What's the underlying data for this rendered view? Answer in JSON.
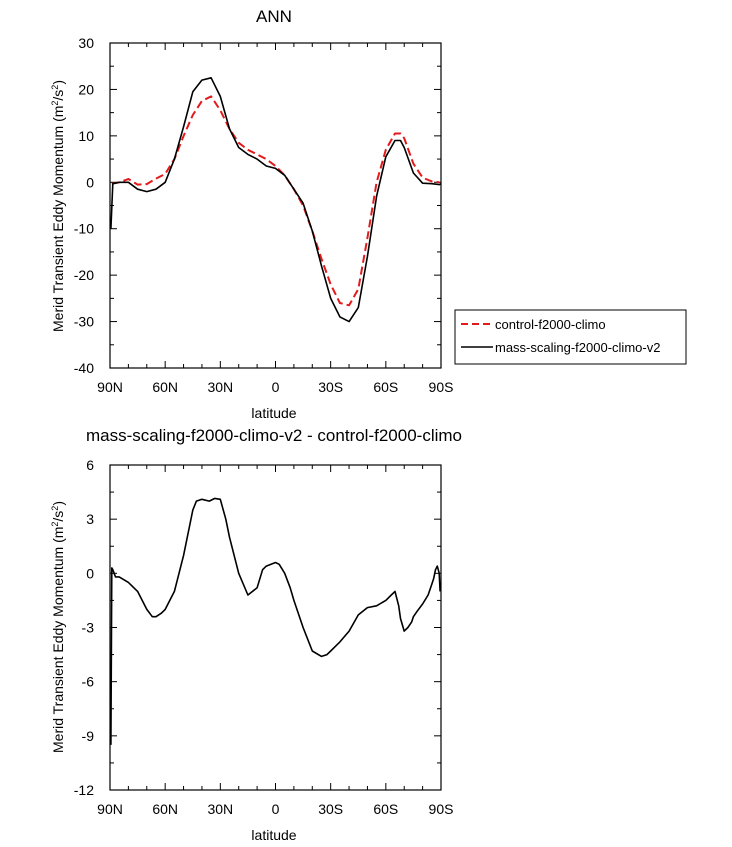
{
  "chart_data": [
    {
      "type": "line",
      "title": "ANN",
      "xlabel": "latitude",
      "ylabel": "Merid Transient Eddy Momentum",
      "ylabel_unit": "m2/s2",
      "xlim": [
        90,
        -90
      ],
      "ylim": [
        -40,
        30
      ],
      "x_ticks": [
        90,
        60,
        30,
        0,
        -30,
        -60,
        -90
      ],
      "x_tick_labels": [
        "90N",
        "60N",
        "30N",
        "0",
        "30S",
        "60S",
        "90S"
      ],
      "y_ticks": [
        -40,
        -30,
        -20,
        -10,
        0,
        10,
        20,
        30
      ],
      "y_tick_labels": [
        "-40",
        "-30",
        "-20",
        "-10",
        "0",
        "10",
        "20",
        "30"
      ],
      "legend_position": "right",
      "series": [
        {
          "name": "control-f2000-climo",
          "color": "#e31a1c",
          "dash": "dashed",
          "x": [
            89,
            85,
            80,
            75,
            70,
            65,
            60,
            55,
            50,
            45,
            40,
            35,
            30,
            25,
            20,
            15,
            10,
            5,
            0,
            -5,
            -10,
            -15,
            -20,
            -25,
            -30,
            -35,
            -40,
            -45,
            -50,
            -55,
            -60,
            -65,
            -68,
            -70,
            -75,
            -80,
            -85,
            -89
          ],
          "values": [
            -0.3,
            0.0,
            0.7,
            -0.5,
            -0.4,
            0.8,
            1.8,
            5.0,
            10.0,
            14.5,
            17.5,
            18.5,
            15.5,
            11.5,
            8.5,
            7.0,
            6.0,
            5.0,
            3.5,
            1.5,
            -1.5,
            -5.0,
            -10.5,
            -16.5,
            -22.0,
            -26.0,
            -26.5,
            -23.0,
            -12.0,
            0.0,
            7.0,
            10.5,
            10.5,
            9.5,
            4.0,
            1.0,
            0.2,
            0.0
          ]
        },
        {
          "name": "mass-scaling-f2000-climo-v2",
          "color": "#000000",
          "dash": "solid",
          "x": [
            89.5,
            88.5,
            85,
            80,
            75,
            70,
            65,
            60,
            55,
            50,
            45,
            40,
            35,
            30,
            25,
            20,
            15,
            10,
            5,
            0,
            -5,
            -10,
            -15,
            -20,
            -25,
            -30,
            -35,
            -40,
            -45,
            -50,
            -55,
            -60,
            -65,
            -68,
            -70,
            -75,
            -80,
            -85,
            -89,
            -90
          ],
          "values": [
            -10.0,
            -0.3,
            0.0,
            0.0,
            -1.5,
            -2.0,
            -1.5,
            0.0,
            5.0,
            12.0,
            19.5,
            22.0,
            22.5,
            18.5,
            11.5,
            7.5,
            6.0,
            5.0,
            3.5,
            3.0,
            1.5,
            -1.5,
            -4.5,
            -10.5,
            -18.0,
            -25.0,
            -29.0,
            -30.0,
            -27.0,
            -16.0,
            -3.0,
            5.5,
            9.0,
            9.0,
            7.5,
            2.0,
            -0.2,
            -0.3,
            -0.5,
            -0.3
          ]
        }
      ]
    },
    {
      "type": "line",
      "title": "mass-scaling-f2000-climo-v2 - control-f2000-climo",
      "xlabel": "latitude",
      "ylabel": "Merid Transient Eddy Momentum",
      "ylabel_unit": "m2/s2",
      "xlim": [
        90,
        -90
      ],
      "ylim": [
        -12,
        6
      ],
      "x_ticks": [
        90,
        60,
        30,
        0,
        -30,
        -60,
        -90
      ],
      "x_tick_labels": [
        "90N",
        "60N",
        "30N",
        "0",
        "30S",
        "60S",
        "90S"
      ],
      "y_ticks": [
        -12,
        -9,
        -6,
        -3,
        0,
        3,
        6
      ],
      "y_tick_labels": [
        "-12",
        "-9",
        "-6",
        "-3",
        "0",
        "3",
        "6"
      ],
      "series": [
        {
          "color": "#000000",
          "dash": "solid",
          "x": [
            89.5,
            89,
            88.5,
            87,
            85,
            80,
            75,
            70,
            67,
            65,
            62,
            60,
            55,
            50,
            45,
            43,
            40,
            36,
            33,
            30,
            27,
            25,
            20,
            15,
            10,
            7,
            5,
            0,
            -2,
            -5,
            -8,
            -10,
            -15,
            -20,
            -25,
            -28,
            -30,
            -32,
            -35,
            -40,
            -45,
            -50,
            -55,
            -60,
            -63,
            -65,
            -67,
            -68,
            -70,
            -72,
            -74,
            -75,
            -77,
            -80,
            -83,
            -85,
            -86,
            -87,
            -88,
            -89,
            -89.5
          ],
          "values": [
            -9.5,
            0.3,
            0.2,
            -0.2,
            -0.2,
            -0.5,
            -1.0,
            -2.0,
            -2.4,
            -2.4,
            -2.2,
            -2.0,
            -1.0,
            1.0,
            3.5,
            4.0,
            4.1,
            4.0,
            4.15,
            4.1,
            3.0,
            2.0,
            0.0,
            -1.2,
            -0.8,
            0.2,
            0.4,
            0.6,
            0.5,
            0.0,
            -0.8,
            -1.5,
            -3.0,
            -4.3,
            -4.6,
            -4.5,
            -4.3,
            -4.1,
            -3.8,
            -3.2,
            -2.3,
            -1.9,
            -1.8,
            -1.5,
            -1.2,
            -1.0,
            -1.8,
            -2.5,
            -3.2,
            -3.0,
            -2.7,
            -2.4,
            -2.1,
            -1.7,
            -1.2,
            -0.6,
            -0.3,
            0.2,
            0.4,
            0.0,
            -1.0
          ]
        }
      ]
    }
  ]
}
